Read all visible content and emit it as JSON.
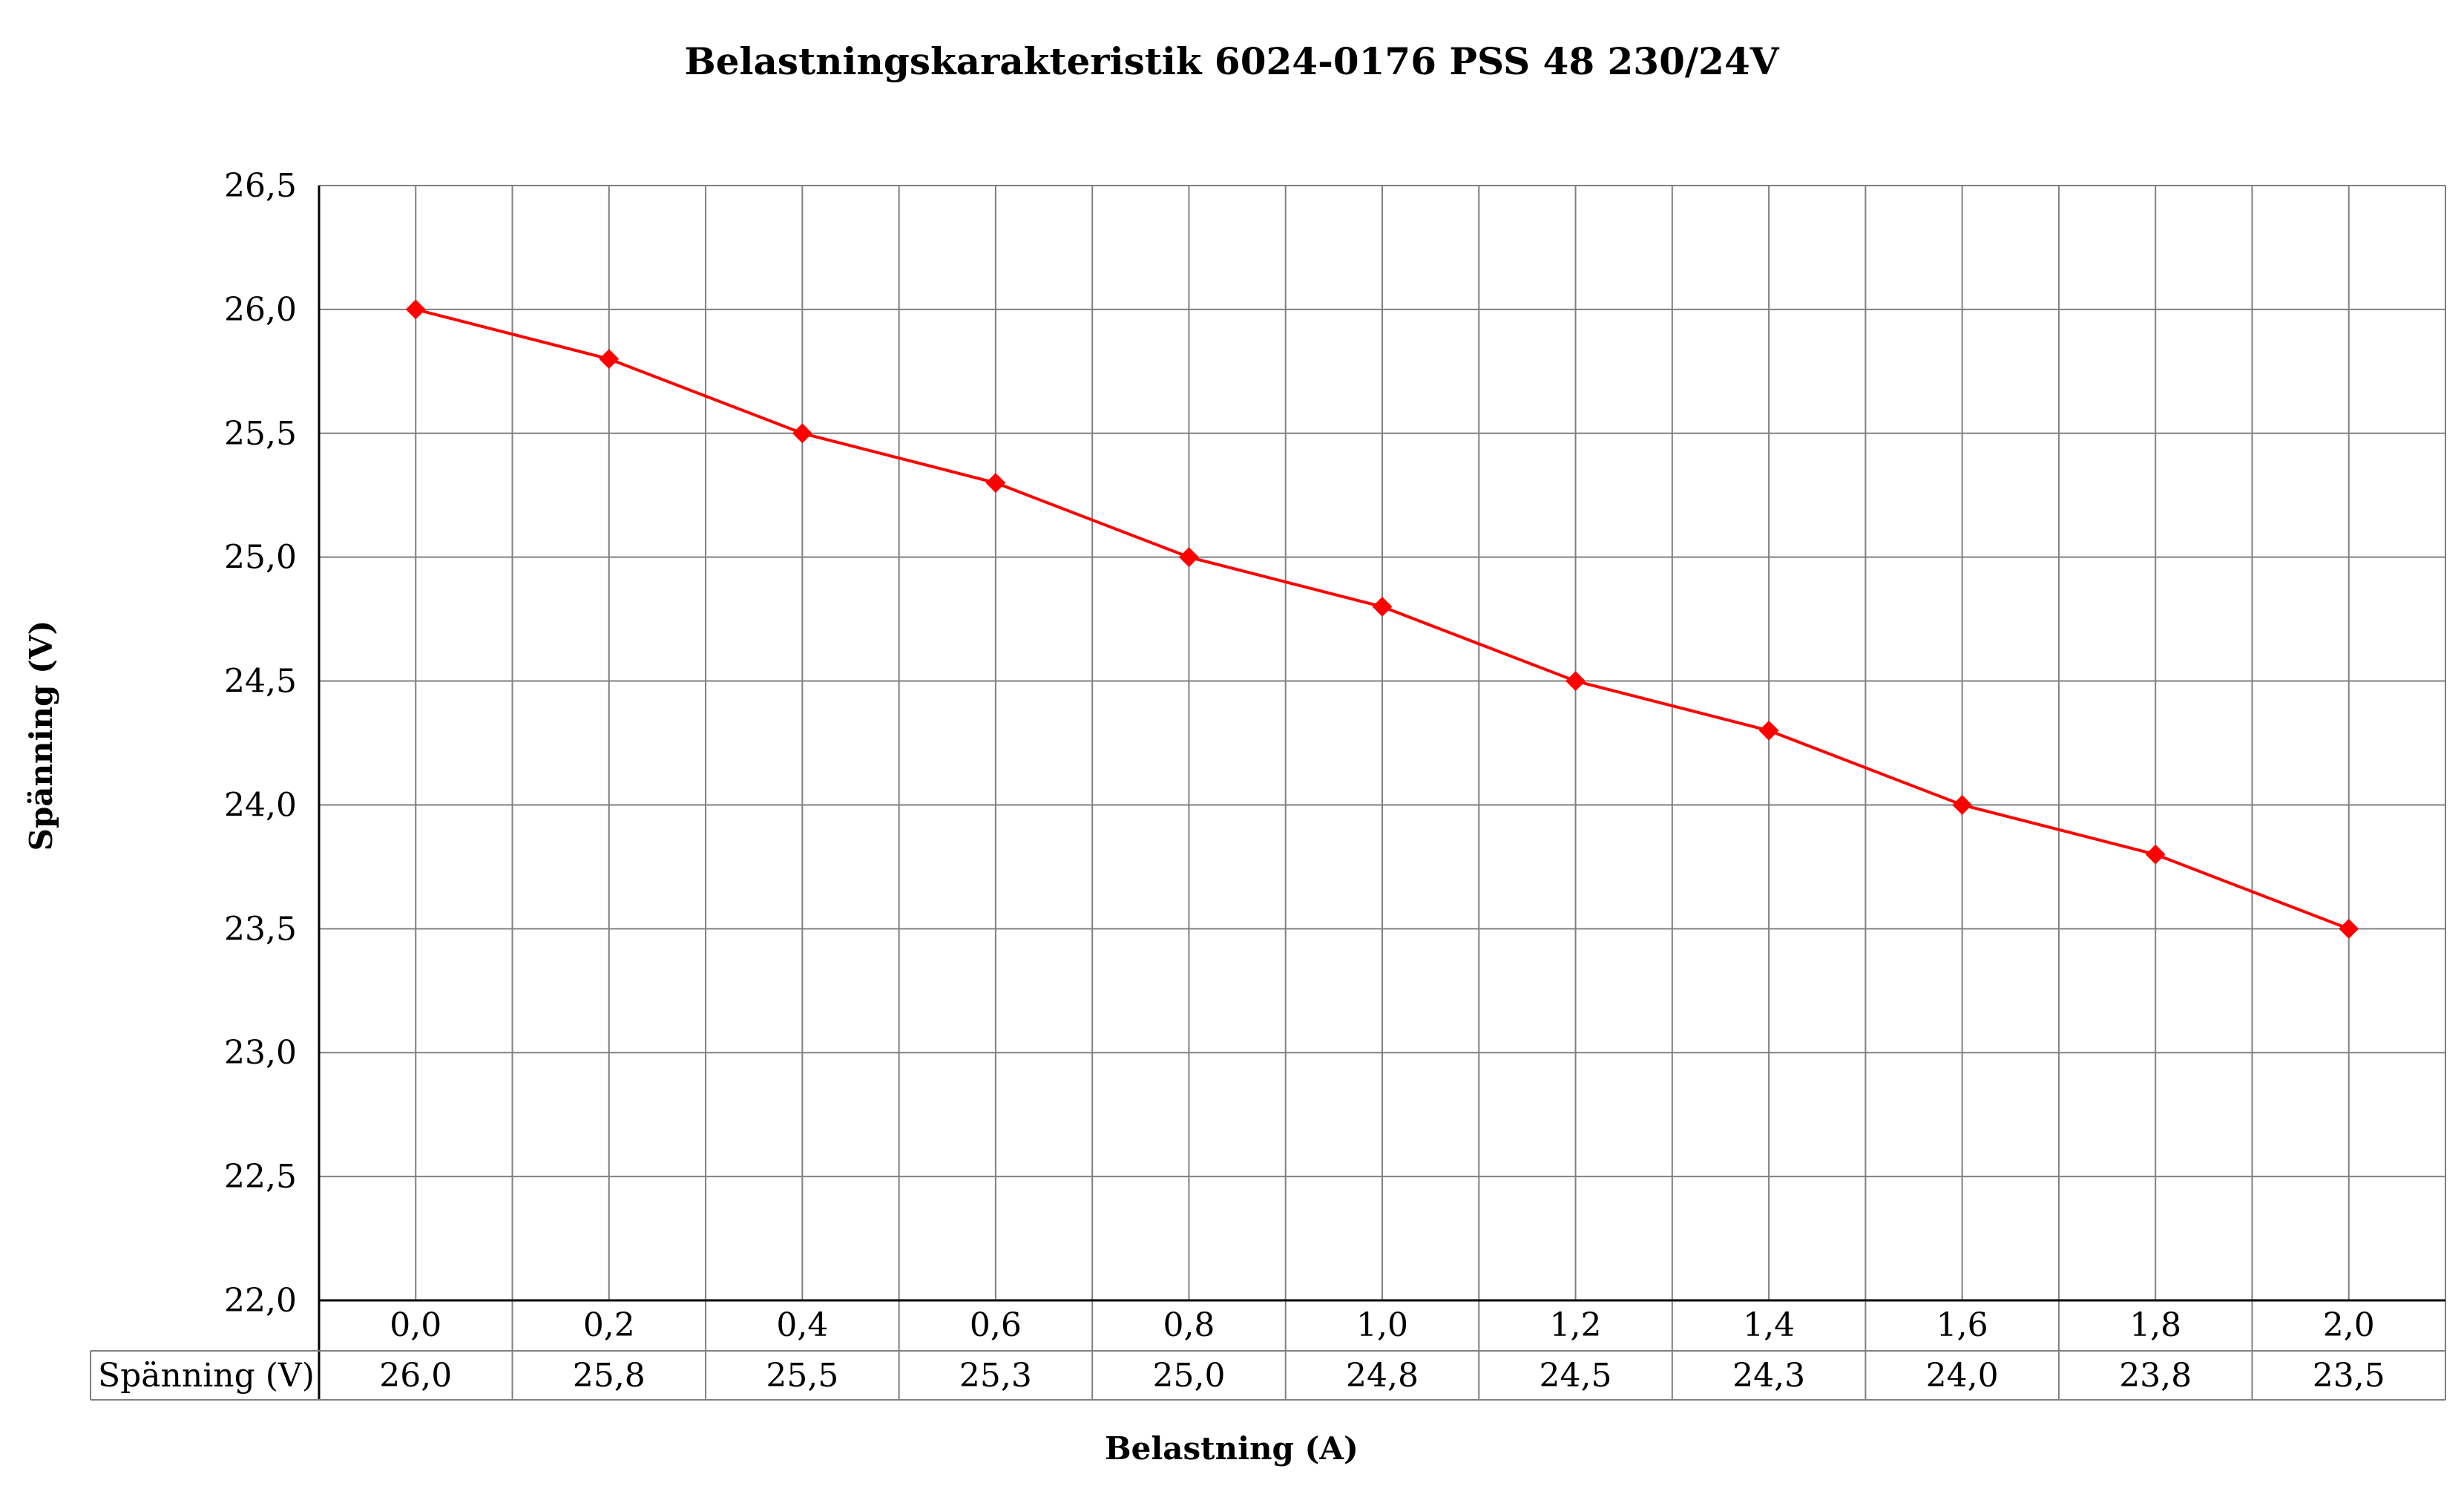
{
  "chart_data": {
    "type": "line",
    "title": "Belastningskarakteristik 6024-0176 PSS 48 230/24V",
    "xlabel": "Belastning (A)",
    "ylabel": "Spänning (V)",
    "categories": [
      "0,0",
      "0,2",
      "0,4",
      "0,6",
      "0,8",
      "1,0",
      "1,2",
      "1,4",
      "1,6",
      "1,8",
      "2,0"
    ],
    "series": [
      {
        "name": "Spänning (V)",
        "values": [
          26.0,
          25.8,
          25.5,
          25.3,
          25.0,
          24.8,
          24.5,
          24.3,
          24.0,
          23.8,
          23.5
        ],
        "value_labels": [
          "26,0",
          "25,8",
          "25,5",
          "25,3",
          "25,0",
          "24,8",
          "24,5",
          "24,3",
          "24,0",
          "23,8",
          "23,5"
        ],
        "color": "#ff0000",
        "marker": "diamond"
      }
    ],
    "ylim": [
      22.0,
      26.5
    ],
    "yticks": [
      "22,0",
      "22,5",
      "23,0",
      "23,5",
      "24,0",
      "24,5",
      "25,0",
      "25,5",
      "26,0",
      "26,5"
    ],
    "grid": true,
    "data_table": true,
    "gridline_color": "#808080"
  }
}
